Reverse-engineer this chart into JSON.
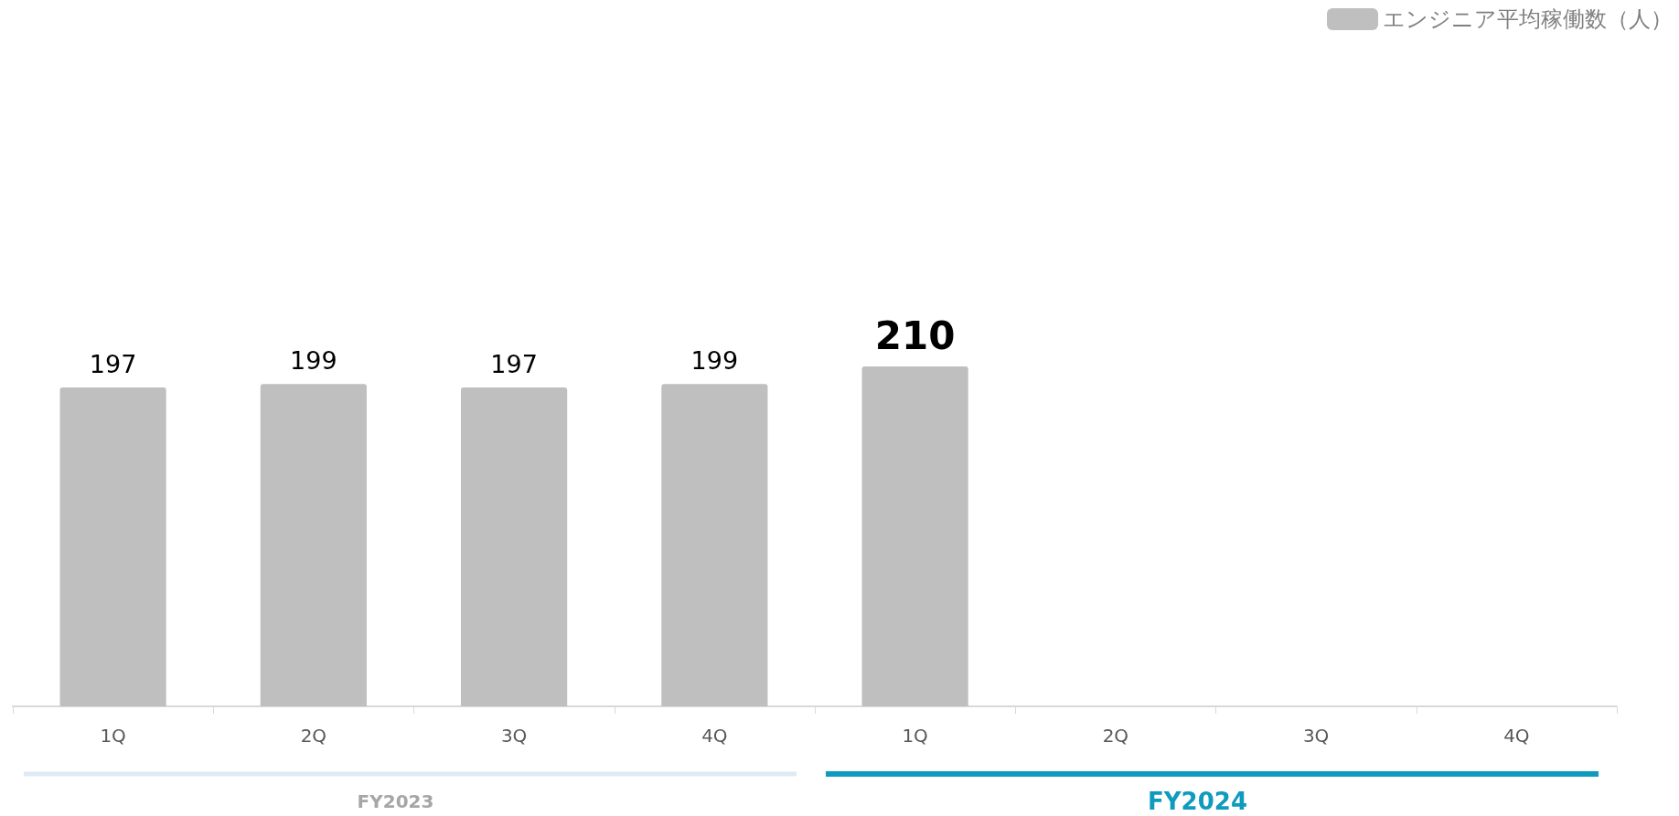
{
  "chart_data": {
    "type": "bar",
    "categories": [
      "1Q",
      "2Q",
      "3Q",
      "4Q",
      "1Q",
      "2Q",
      "3Q",
      "4Q"
    ],
    "series": [
      {
        "name": "エンジニア平均稼働数（人）",
        "color": "#bfbfbf",
        "values": [
          197,
          199,
          197,
          199,
          210,
          null,
          null,
          null
        ]
      }
    ],
    "data_labels": true,
    "legend": "top right",
    "grid": false,
    "annotations": [
      "FY2023",
      "FY2024"
    ]
  }
}
